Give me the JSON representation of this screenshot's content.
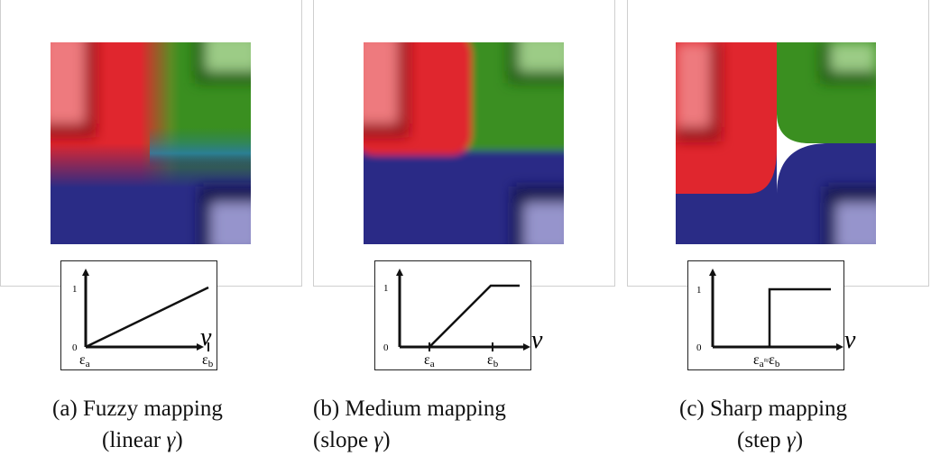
{
  "panels": [
    {
      "id": "a",
      "caption_line1": "(a) Fuzzy mapping",
      "caption_line2_text": "(linear ",
      "caption_symbol": "γ",
      "caption_line2_end": ")",
      "mapping": "linear",
      "tick_left": "ε",
      "tick_left_sub": "a",
      "tick_right": "ε",
      "tick_right_sub": "b"
    },
    {
      "id": "b",
      "caption_line1": "(b) Medium mapping",
      "caption_line2_text": "(slope ",
      "caption_symbol": "γ",
      "caption_line2_end": ")",
      "mapping": "slope",
      "tick_left": "ε",
      "tick_left_sub": "a",
      "tick_right": "ε",
      "tick_right_sub": "b"
    },
    {
      "id": "c",
      "caption_line1": "(c) Sharp mapping",
      "caption_line2_text": "(step ",
      "caption_symbol": "γ",
      "caption_line2_end": ")",
      "mapping": "step",
      "tick_left": "ε",
      "tick_left_sub": "a",
      "tick_mid": "≈",
      "tick_right": "ε",
      "tick_right_sub": "b"
    }
  ],
  "axis": {
    "y_high": "1",
    "y_low": "0",
    "x_symbol": "ν"
  },
  "colors": {
    "red": "#e0262e",
    "red_dark": "#9a0f14",
    "red_light": "#ee7a7e",
    "green": "#3a8f20",
    "green_dark": "#1f5a10",
    "green_light": "#9ccc86",
    "blue": "#2a2c86",
    "blue_dark": "#15164f",
    "blue_light": "#9694cc"
  }
}
